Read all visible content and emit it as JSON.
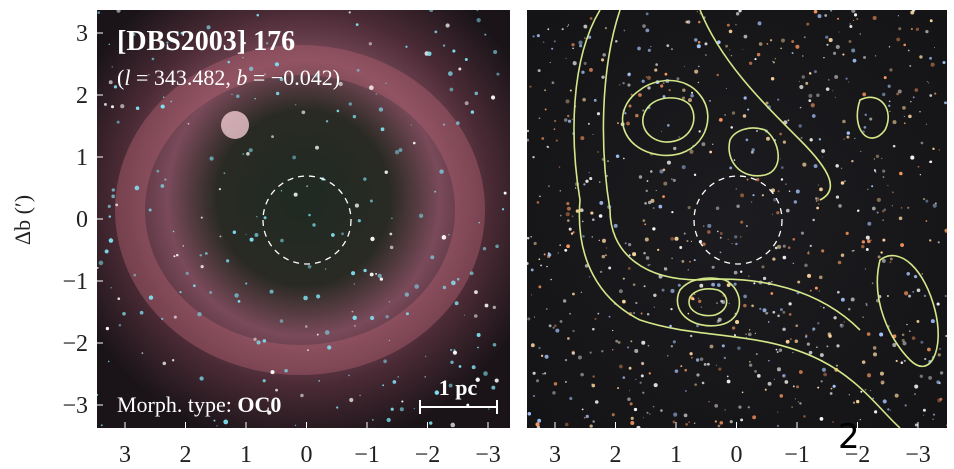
{
  "figure": {
    "left_panel": {
      "title": "[DBS2003] 176",
      "coords": [
        "(",
        "l",
        " = 343.482, ",
        "b",
        " = −0.042)"
      ],
      "morph_label": "Morph. type: ",
      "morph_type": "OC0",
      "scale_bar": "1 pc"
    },
    "y_axis": {
      "label": "Δb (′)",
      "ticks": [
        "3",
        "2",
        "1",
        "0",
        "−1",
        "−2",
        "−3"
      ]
    },
    "left_x_ticks": [
      "3",
      "2",
      "1",
      "0",
      "−1",
      "−2",
      "−3"
    ],
    "right_x_ticks": [
      "3",
      "2",
      "1",
      "0",
      "−1",
      "−2",
      "−3"
    ],
    "stray_mark": "2"
  }
}
